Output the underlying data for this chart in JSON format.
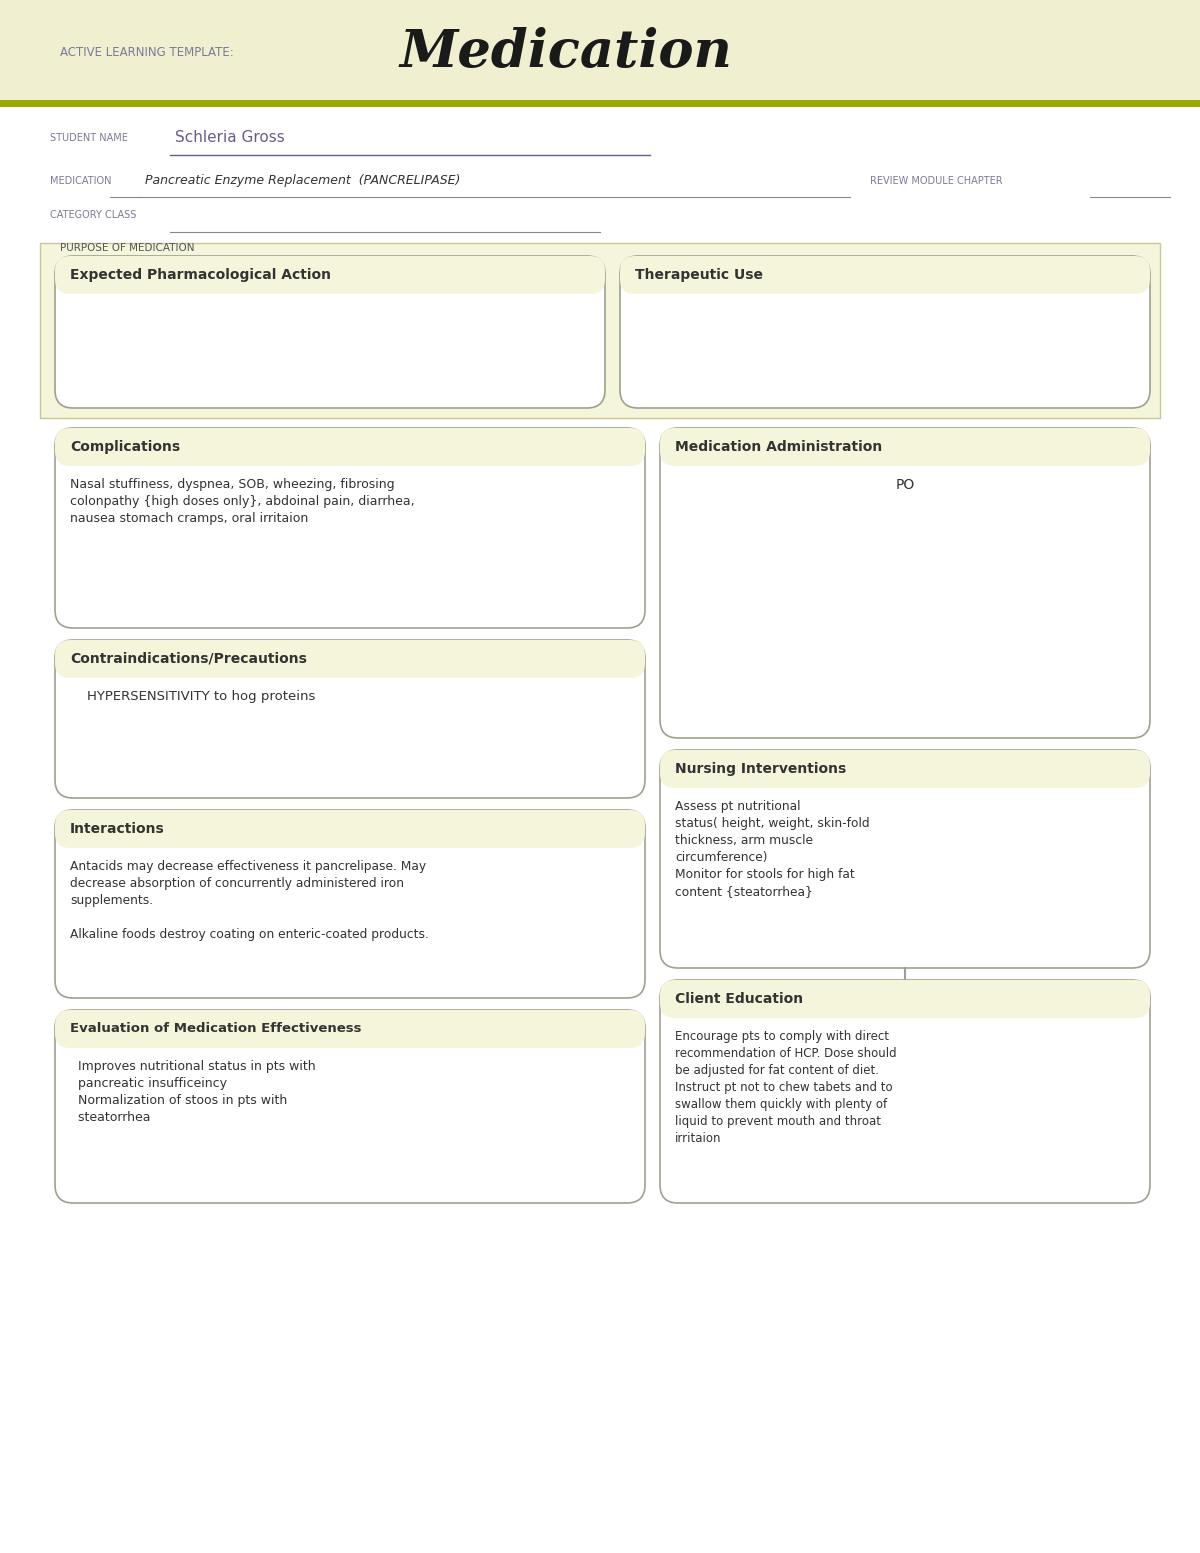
{
  "bg_header_color": "#f0f0d0",
  "bg_white": "#ffffff",
  "box_bg_color": "#f5f5dc",
  "box_border_color": "#a0a090",
  "text_dark": "#333333",
  "text_purple": "#6b5b8b",
  "header_label": "ACTIVE LEARNING TEMPLATE:",
  "header_title": "Medication",
  "student_label": "STUDENT NAME",
  "student_name": "Schleria Gross",
  "medication_label": "MEDICATION",
  "medication_name": "Pancreatic Enzyme Replacement  (PANCRELIPASE)",
  "review_label": "REVIEW MODULE CHAPTER",
  "category_label": "CATEGORY CLASS",
  "purpose_label": "PURPOSE OF MEDICATION",
  "box1_title": "Expected Pharmacological Action",
  "box2_title": "Therapeutic Use",
  "box3_title": "Complications",
  "box3_content": "Nasal stuffiness, dyspnea, SOB, wheezing, fibrosing\ncolonpathy {high doses only}, abdoinal pain, diarrhea,\nnausea stomach cramps, oral irritaion",
  "box4_title": "Medication Administration",
  "box4_content": "PO",
  "box5_title": "Contraindications/Precautions",
  "box5_content": "    HYPERSENSITIVITY to hog proteins",
  "box6_title": "Nursing Interventions",
  "box6_content": "Assess pt nutritional\nstatus( height, weight, skin-fold\nthickness, arm muscle\ncircumference)\nMonitor for stools for high fat\ncontent {steatorrhea}",
  "box7_title": "Interactions",
  "box7_content": "Antacids may decrease effectiveness it pancrelipase. May\ndecrease absorption of concurrently administered iron\nsupplements.\n\nAlkaline foods destroy coating on enteric-coated products.",
  "box8_title": "Client Education",
  "box8_content": "Encourage pts to comply with direct\nrecommendation of HCP. Dose should\nbe adjusted for fat content of diet.\nInstruct pt not to chew tabets and to\nswallow them quickly with plenty of\nliquid to prevent mouth and throat\nirritaion",
  "box9_title": "Evaluation of Medication Effectiveness",
  "box9_content": "  Improves nutritional status in pts with\n  pancreatic insufficeincy\n  Normalization of stoos in pts with\n  steatorrhea"
}
